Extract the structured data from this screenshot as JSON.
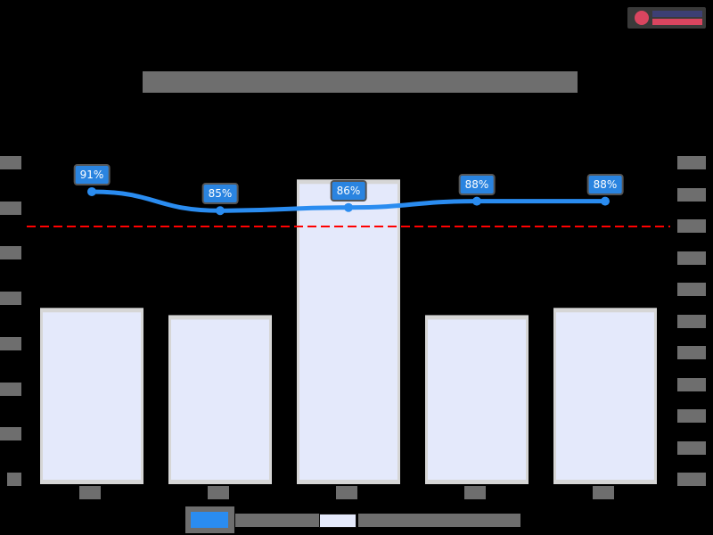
{
  "header": {
    "title": "[redacted]",
    "logo": "brand-logo"
  },
  "chart_data": {
    "type": "bar+line",
    "title": "[redacted]",
    "categories": [
      "[c1]",
      "[c2]",
      "[c3]",
      "[c4]",
      "[c5]"
    ],
    "series": [
      {
        "name": "[bar series]",
        "type": "bar",
        "axis": "left",
        "color": "#e4e9fb",
        "values": [
          18.8,
          18.0,
          33.0,
          18.0,
          18.8
        ]
      },
      {
        "name": "[line series]",
        "type": "line",
        "axis": "right",
        "color": "#2a8cf0",
        "values": [
          91,
          85,
          86,
          88,
          88
        ],
        "labels": [
          "91%",
          "85%",
          "86%",
          "88%",
          "88%"
        ]
      }
    ],
    "reference_line": {
      "value": 80,
      "axis": "right",
      "color": "#ff0000",
      "style": "dashed"
    },
    "left_axis": {
      "ticks": 8,
      "range": [
        0,
        35
      ]
    },
    "right_axis": {
      "ticks": [
        "0%",
        "10%",
        "20%",
        "30%",
        "40%",
        "50%",
        "60%",
        "70%",
        "80%",
        "90%",
        "100%"
      ],
      "range": [
        0,
        100
      ]
    },
    "legend_position": "bottom",
    "grid": false
  },
  "legend": {
    "items": [
      {
        "label": "[line series]",
        "color": "#2a8cf0"
      },
      {
        "label": "[bar series]",
        "color": "#e4e9fb"
      }
    ]
  }
}
